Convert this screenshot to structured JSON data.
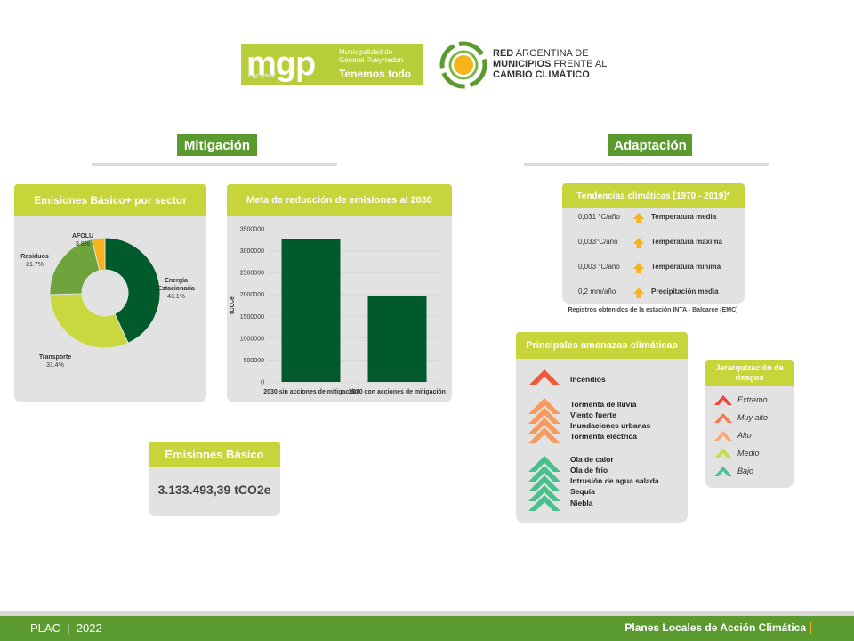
{
  "header": {
    "mgp": {
      "word": "mgp",
      "url": "mgp.gob.ar",
      "municipality": "Municipalidad de General Pueyrredon",
      "tagline": "Tenemos todo"
    },
    "red": {
      "line1_bold": "RED",
      "line1_rest": " ARGENTINA DE",
      "line2_bold": "MUNICIPIOS",
      "line2_rest": " FRENTE AL",
      "line3_bold": "CAMBIO CLIMÁTICO"
    }
  },
  "mitigacion": {
    "title": "Mitigación",
    "emisiones_sector": {
      "title": "Emisiones Básico+ por sector",
      "chart_data": {
        "type": "pie",
        "donut": true,
        "slices": [
          {
            "name": "Energía Estacionaria",
            "value": 43.1,
            "label": "43.1%",
            "color": "#005a2b"
          },
          {
            "name": "Transporte",
            "value": 31.4,
            "label": "31.4%",
            "color": "#c9d83f"
          },
          {
            "name": "Residuos",
            "value": 21.7,
            "label": "21.7%",
            "color": "#6fa33b"
          },
          {
            "name": "AFOLU",
            "value": 3.8,
            "label": "3.8%",
            "color": "#f4b41a"
          }
        ]
      }
    },
    "meta": {
      "title": "Meta de reducción de emisiones al 2030",
      "chart_data": {
        "type": "bar",
        "categories": [
          "2030 sin acciones de mitigación",
          "2030 con acciones de mitigación"
        ],
        "values": [
          3270000,
          1960000
        ],
        "ylabel": "tCO₂e",
        "ylim": [
          0,
          3500000
        ],
        "yticks": [
          "0",
          "500000",
          "1000000",
          "1500000",
          "2000000",
          "2500000",
          "3000000",
          "3500000"
        ],
        "bar_color": "#005a2b"
      }
    },
    "emisiones_basico": {
      "title": "Emisiones Básico",
      "value": "3.133.493,39 tCO2e"
    }
  },
  "adaptacion": {
    "title": "Adaptación",
    "tendencias": {
      "title": "Tendencias climáticas [1970 - 2019]*",
      "rows": [
        {
          "value": "0,031 °C/año",
          "name": "Temperatura media"
        },
        {
          "value": "0,033°C/año",
          "name": "Temperatura máxima"
        },
        {
          "value": "0,003 °C/año",
          "name": "Temperatura mínima"
        },
        {
          "value": "0,2 mm/año",
          "name": "Precipitación media"
        }
      ],
      "arrow_color": "#f4b41a",
      "note": "Registros obtenidos de la estación INTA - Balcarce (EMC)"
    },
    "amenazas": {
      "title": "Principales amenazas climáticas",
      "groups": [
        {
          "level": "Extremo",
          "color": "#f05a3a",
          "items": [
            "Incendios"
          ]
        },
        {
          "level": "Alto",
          "color": "#f79a5e",
          "items": [
            "Tormenta de lluvia",
            "Viento fuerte",
            "Inundaciones urbanas",
            "Tormenta eléctrica"
          ]
        },
        {
          "level": "Bajo",
          "color": "#4bc08c",
          "items": [
            "Ola de calor",
            "Ola de frío",
            "Intrusión de agua salada",
            "Sequía",
            "Niebla"
          ]
        }
      ]
    },
    "jerarquizacion": {
      "title": "Jerarquización de riesgos",
      "levels": [
        {
          "label": "Extremo",
          "color": "#f0443a"
        },
        {
          "label": "Muy alto",
          "color": "#f57c4e"
        },
        {
          "label": "Alto",
          "color": "#f9a977"
        },
        {
          "label": "Medio",
          "color": "#c7dc3a"
        },
        {
          "label": "Bajo",
          "color": "#4bbf95"
        }
      ]
    }
  },
  "footer": {
    "left": "PLAC  |  2022",
    "right": "Planes Locales de Acción Climática"
  }
}
